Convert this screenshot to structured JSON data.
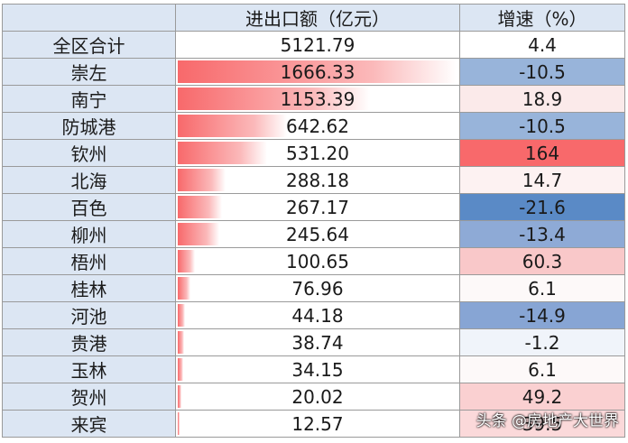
{
  "header": {
    "col1": "",
    "col2": "进出口额（亿元）",
    "col3": "增速（%）"
  },
  "rows": [
    {
      "name": "全区合计",
      "value": "5121.79",
      "growth": "4.4",
      "bar_fraction": 0,
      "growth_color": "#ffffff"
    },
    {
      "name": "崇左",
      "value": "1666.33",
      "growth": "-10.5",
      "bar_fraction": 1.0,
      "growth_color": "#98b4da"
    },
    {
      "name": "南宁",
      "value": "1153.39",
      "growth": "18.9",
      "bar_fraction": 0.69,
      "growth_color": "#fbeaea"
    },
    {
      "name": "防城港",
      "value": "642.62",
      "growth": "-10.5",
      "bar_fraction": 0.39,
      "growth_color": "#98b4da"
    },
    {
      "name": "钦州",
      "value": "531.20",
      "growth": "164",
      "bar_fraction": 0.32,
      "growth_color": "#f8696b"
    },
    {
      "name": "北海",
      "value": "288.18",
      "growth": "14.7",
      "bar_fraction": 0.17,
      "growth_color": "#fdf2f2"
    },
    {
      "name": "百色",
      "value": "267.17",
      "growth": "-21.6",
      "bar_fraction": 0.16,
      "growth_color": "#5a8ac6"
    },
    {
      "name": "柳州",
      "value": "245.64",
      "growth": "-13.4",
      "bar_fraction": 0.15,
      "growth_color": "#8eaad6"
    },
    {
      "name": "梧州",
      "value": "100.65",
      "growth": "60.3",
      "bar_fraction": 0.06,
      "growth_color": "#f9c8c9"
    },
    {
      "name": "桂林",
      "value": "76.96",
      "growth": "6.1",
      "bar_fraction": 0.046,
      "growth_color": "#fdf9f9"
    },
    {
      "name": "河池",
      "value": "44.18",
      "growth": "-14.9",
      "bar_fraction": 0.027,
      "growth_color": "#87a5d4"
    },
    {
      "name": "贵港",
      "value": "38.74",
      "growth": "-1.2",
      "bar_fraction": 0.023,
      "growth_color": "#f0f4fa"
    },
    {
      "name": "玉林",
      "value": "34.15",
      "growth": "6.1",
      "bar_fraction": 0.02,
      "growth_color": "#fdf9f9"
    },
    {
      "name": "贺州",
      "value": "20.02",
      "growth": "49.2",
      "bar_fraction": 0.012,
      "growth_color": "#fad0d1"
    },
    {
      "name": "来宾",
      "value": "12.57",
      "growth": "39.5",
      "bar_fraction": 0.0075,
      "growth_color": "#fbd9da"
    }
  ],
  "watermark": "头条 @房地产大世界",
  "colors": {
    "header_bg": "#dce6f3",
    "bar": "#f8696b"
  }
}
